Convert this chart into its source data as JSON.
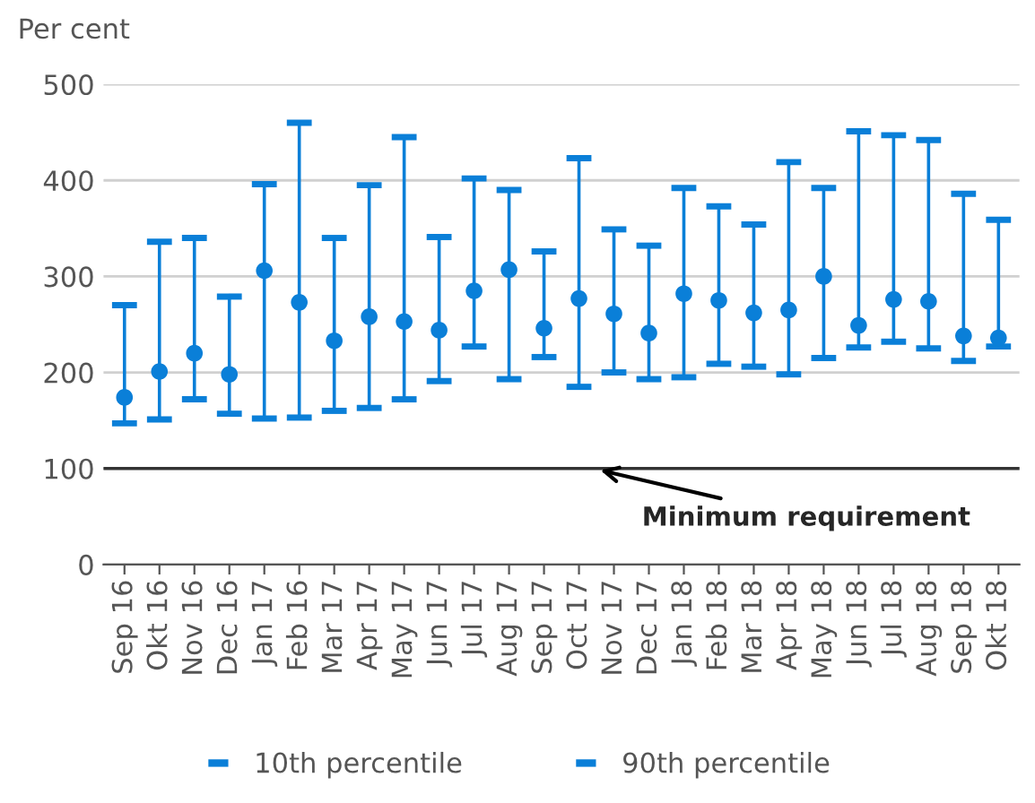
{
  "chart_data": {
    "type": "scatter",
    "ylabel": "Per cent",
    "categories": [
      "Sep 16",
      "Okt 16",
      "Nov 16",
      "Dec 16",
      "Jan 17",
      "Feb 16",
      "Mar 17",
      "Apr 17",
      "May 17",
      "Jun 17",
      "Jul 17",
      "Aug 17",
      "Sep 17",
      "Oct 17",
      "Nov 17",
      "Dec 17",
      "Jan 18",
      "Feb 18",
      "Mar 18",
      "Apr 18",
      "May 18",
      "Jun 18",
      "Jul 18",
      "Aug 18",
      "Sep 18",
      "Okt 18"
    ],
    "series": [
      {
        "color": "#0a7fd8",
        "marker": "circle",
        "values": [
          174,
          201,
          220,
          198,
          306,
          273,
          233,
          258,
          253,
          244,
          285,
          307,
          246,
          277,
          261,
          241,
          282,
          275,
          262,
          265,
          300,
          249,
          276,
          274,
          238,
          236
        ],
        "errors": [
          [
            147,
            270
          ],
          [
            151,
            336
          ],
          [
            172,
            340
          ],
          [
            157,
            279
          ],
          [
            152,
            396
          ],
          [
            153,
            460
          ],
          [
            160,
            340
          ],
          [
            163,
            395
          ],
          [
            172,
            445
          ],
          [
            191,
            341
          ],
          [
            227,
            402
          ],
          [
            193,
            390
          ],
          [
            216,
            326
          ],
          [
            185,
            423
          ],
          [
            200,
            349
          ],
          [
            193,
            332
          ],
          [
            195,
            392
          ],
          [
            209,
            373
          ],
          [
            206,
            354
          ],
          [
            198,
            419
          ],
          [
            215,
            392
          ],
          [
            226,
            451
          ],
          [
            232,
            447
          ],
          [
            225,
            442
          ],
          [
            212,
            386
          ],
          [
            227,
            359
          ]
        ]
      }
    ],
    "ylim": [
      0,
      500
    ],
    "yticks": [
      0,
      100,
      200,
      300,
      400,
      500
    ],
    "grid": "y",
    "ref_lines": [
      {
        "axis": "y",
        "value": 100,
        "color": "#333333"
      }
    ],
    "annotations": [
      {
        "text": "Minimum requirement",
        "x": "Nov 17",
        "y": 100
      },
      "10th percentile",
      "90th percentile"
    ]
  }
}
